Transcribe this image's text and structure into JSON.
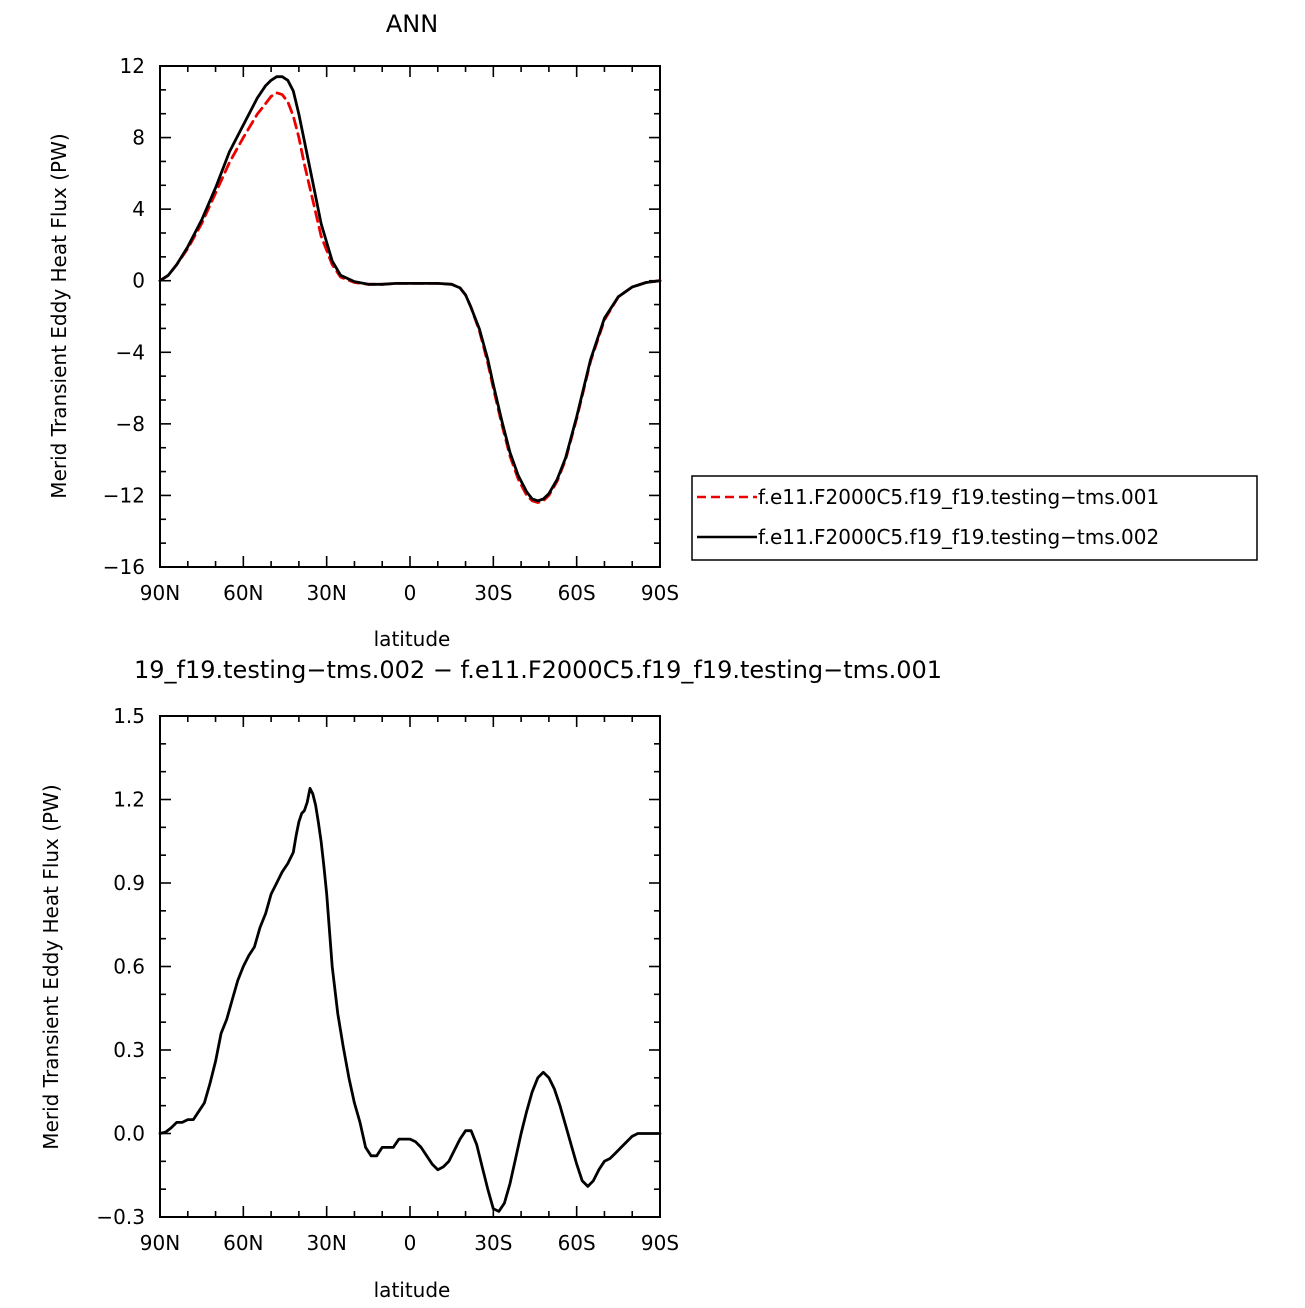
{
  "colors": {
    "series_a": "#ee0000",
    "series_b": "#000000",
    "frame": "#000000"
  },
  "chart_data": [
    {
      "type": "line",
      "title": "ANN",
      "xlabel": "latitude",
      "ylabel": "Merid Transient Eddy Heat Flux (PW)",
      "xlim": [
        90,
        -90
      ],
      "ylim": [
        -16,
        12
      ],
      "xticks": [
        {
          "value": 90,
          "label": "90N"
        },
        {
          "value": 60,
          "label": "60N"
        },
        {
          "value": 30,
          "label": "30N"
        },
        {
          "value": 0,
          "label": "0"
        },
        {
          "value": -30,
          "label": "30S"
        },
        {
          "value": -60,
          "label": "60S"
        },
        {
          "value": -90,
          "label": "90S"
        }
      ],
      "yticks": [
        {
          "value": 12,
          "label": "12"
        },
        {
          "value": 8,
          "label": "8"
        },
        {
          "value": 4,
          "label": "4"
        },
        {
          "value": 0,
          "label": "0"
        },
        {
          "value": -4,
          "label": "−4"
        },
        {
          "value": -8,
          "label": "−8"
        },
        {
          "value": -12,
          "label": "−12"
        },
        {
          "value": -16,
          "label": "−16"
        }
      ],
      "legend_position": "right",
      "series": [
        {
          "name": "f.e11.F2000C5.f19_f19.testing−tms.001",
          "color": "#ee0000",
          "dash": "dashed",
          "x": [
            90,
            87,
            84,
            80,
            75,
            70,
            65,
            60,
            55,
            52,
            50,
            48,
            46,
            44,
            42,
            40,
            38,
            35,
            32,
            28,
            25,
            20,
            15,
            10,
            5,
            0,
            -5,
            -10,
            -15,
            -18,
            -20,
            -22,
            -25,
            -28,
            -30,
            -33,
            -36,
            -39,
            -42,
            -44,
            -46,
            -48,
            -50,
            -53,
            -56,
            -60,
            -65,
            -70,
            -75,
            -80,
            -85,
            -90
          ],
          "y": [
            0,
            0.3,
            0.9,
            1.8,
            3.2,
            4.9,
            6.6,
            8.0,
            9.3,
            9.9,
            10.3,
            10.5,
            10.4,
            10.0,
            9.2,
            8.0,
            6.5,
            4.5,
            2.5,
            0.9,
            0.2,
            -0.1,
            -0.2,
            -0.2,
            -0.15,
            -0.15,
            -0.15,
            -0.15,
            -0.2,
            -0.4,
            -0.8,
            -1.5,
            -2.8,
            -4.6,
            -6.0,
            -8.0,
            -9.8,
            -11.1,
            -12.0,
            -12.3,
            -12.4,
            -12.3,
            -12.0,
            -11.2,
            -10.0,
            -7.7,
            -4.5,
            -2.2,
            -0.9,
            -0.35,
            -0.1,
            0
          ]
        },
        {
          "name": "f.e11.F2000C5.f19_f19.testing−tms.002",
          "color": "#000000",
          "dash": "solid",
          "x": [
            90,
            87,
            84,
            80,
            75,
            70,
            65,
            60,
            55,
            52,
            50,
            48,
            46,
            44,
            42,
            40,
            38,
            35,
            32,
            28,
            25,
            20,
            15,
            10,
            5,
            0,
            -5,
            -10,
            -15,
            -18,
            -20,
            -22,
            -25,
            -28,
            -30,
            -33,
            -36,
            -39,
            -42,
            -44,
            -46,
            -48,
            -50,
            -53,
            -56,
            -60,
            -65,
            -70,
            -75,
            -80,
            -85,
            -90
          ],
          "y": [
            0,
            0.3,
            0.9,
            1.9,
            3.4,
            5.2,
            7.2,
            8.7,
            10.2,
            10.9,
            11.2,
            11.4,
            11.4,
            11.2,
            10.6,
            9.3,
            7.8,
            5.5,
            3.2,
            1.1,
            0.3,
            -0.05,
            -0.2,
            -0.2,
            -0.15,
            -0.15,
            -0.15,
            -0.15,
            -0.2,
            -0.4,
            -0.8,
            -1.5,
            -2.7,
            -4.4,
            -5.8,
            -7.8,
            -9.6,
            -10.9,
            -11.8,
            -12.2,
            -12.3,
            -12.2,
            -11.9,
            -11.1,
            -9.9,
            -7.6,
            -4.4,
            -2.1,
            -0.9,
            -0.35,
            -0.1,
            0
          ]
        }
      ]
    },
    {
      "type": "line",
      "title": "19_f19.testing−tms.002 − f.e11.F2000C5.f19_f19.testing−tms.001",
      "xlabel": "latitude",
      "ylabel": "Merid Transient Eddy Heat Flux (PW)",
      "xlim": [
        90,
        -90
      ],
      "ylim": [
        -0.3,
        1.5
      ],
      "xticks": [
        {
          "value": 90,
          "label": "90N"
        },
        {
          "value": 60,
          "label": "60N"
        },
        {
          "value": 30,
          "label": "30N"
        },
        {
          "value": 0,
          "label": "0"
        },
        {
          "value": -30,
          "label": "30S"
        },
        {
          "value": -60,
          "label": "60S"
        },
        {
          "value": -90,
          "label": "90S"
        }
      ],
      "yticks": [
        {
          "value": 1.5,
          "label": "1.5"
        },
        {
          "value": 1.2,
          "label": "1.2"
        },
        {
          "value": 0.9,
          "label": "0.9"
        },
        {
          "value": 0.6,
          "label": "0.6"
        },
        {
          "value": 0.3,
          "label": "0.3"
        },
        {
          "value": 0.0,
          "label": "0.0"
        },
        {
          "value": -0.3,
          "label": "−0.3"
        }
      ],
      "series": [
        {
          "color": "#000000",
          "dash": "solid",
          "x": [
            90,
            88,
            86,
            84,
            82,
            80,
            78,
            76,
            74,
            72,
            70,
            68,
            66,
            64,
            62,
            60,
            58,
            56,
            54,
            52,
            50,
            48,
            46,
            44,
            42,
            41,
            40,
            39,
            38,
            37,
            36,
            35,
            34,
            33,
            32,
            31,
            30,
            28,
            26,
            24,
            22,
            20,
            18,
            16,
            14,
            12,
            10,
            8,
            6,
            4,
            2,
            0,
            -2,
            -4,
            -6,
            -8,
            -10,
            -12,
            -14,
            -16,
            -18,
            -20,
            -22,
            -24,
            -26,
            -28,
            -30,
            -32,
            -34,
            -36,
            -38,
            -40,
            -42,
            -44,
            -46,
            -48,
            -50,
            -52,
            -54,
            -56,
            -58,
            -60,
            -62,
            -64,
            -66,
            -68,
            -70,
            -72,
            -74,
            -76,
            -78,
            -80,
            -82,
            -84,
            -86,
            -88,
            -90
          ],
          "y": [
            0.0,
            0.005,
            0.02,
            0.04,
            0.04,
            0.05,
            0.05,
            0.08,
            0.11,
            0.18,
            0.26,
            0.36,
            0.41,
            0.48,
            0.55,
            0.6,
            0.64,
            0.67,
            0.74,
            0.79,
            0.86,
            0.9,
            0.94,
            0.97,
            1.01,
            1.07,
            1.12,
            1.15,
            1.16,
            1.19,
            1.24,
            1.22,
            1.18,
            1.12,
            1.05,
            0.96,
            0.86,
            0.6,
            0.43,
            0.31,
            0.2,
            0.11,
            0.04,
            -0.05,
            -0.08,
            -0.08,
            -0.05,
            -0.05,
            -0.05,
            -0.02,
            -0.02,
            -0.02,
            -0.03,
            -0.05,
            -0.08,
            -0.11,
            -0.13,
            -0.12,
            -0.1,
            -0.06,
            -0.02,
            0.01,
            0.01,
            -0.04,
            -0.12,
            -0.2,
            -0.27,
            -0.28,
            -0.25,
            -0.18,
            -0.09,
            0.0,
            0.08,
            0.15,
            0.2,
            0.22,
            0.2,
            0.16,
            0.1,
            0.03,
            -0.04,
            -0.11,
            -0.17,
            -0.19,
            -0.17,
            -0.13,
            -0.1,
            -0.09,
            -0.07,
            -0.05,
            -0.03,
            -0.01,
            0.0,
            0.0,
            0.0,
            0.0,
            0.0
          ]
        }
      ]
    }
  ]
}
